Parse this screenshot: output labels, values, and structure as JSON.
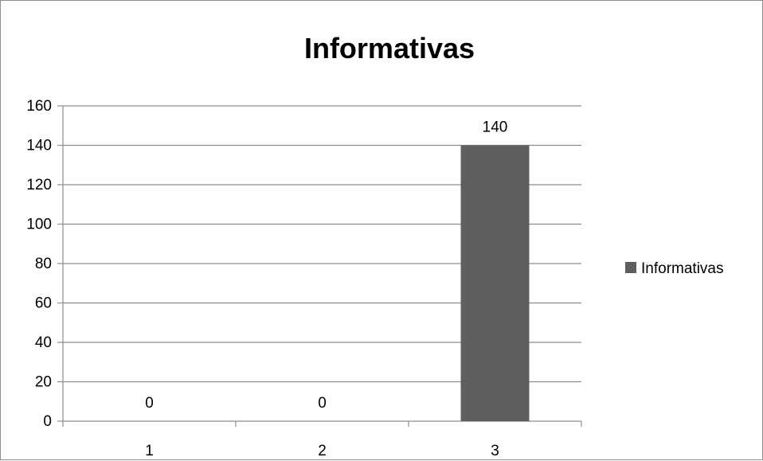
{
  "chart_data": {
    "type": "bar",
    "title": "Informativas",
    "categories": [
      "1",
      "2",
      "3"
    ],
    "series": [
      {
        "name": "Informativas",
        "values": [
          0,
          0,
          140
        ],
        "color": "#5f5f5f"
      }
    ],
    "data_labels": [
      "0",
      "0",
      "140"
    ],
    "ylim": [
      0,
      160
    ],
    "yticks": [
      "0",
      "20",
      "40",
      "60",
      "80",
      "100",
      "120",
      "140",
      "160"
    ],
    "grid": true,
    "legend_position": "right",
    "legend_label": "Informativas"
  }
}
